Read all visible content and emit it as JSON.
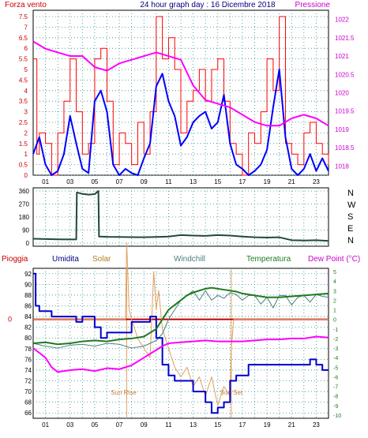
{
  "chart_data": [
    {
      "type": "line",
      "title": "24 hour graph day : 16 Dicembre 2018",
      "left_axis_label": "Forza vento",
      "right_axis_label": "Pressione",
      "x_ticks": [
        "01",
        "03",
        "05",
        "07",
        "09",
        "11",
        "13",
        "15",
        "17",
        "19",
        "21",
        "23"
      ],
      "left_ticks": [
        "0",
        "0.5",
        "1",
        "1.5",
        "2",
        "2.5",
        "3",
        "3.5",
        "4",
        "4.5",
        "5",
        "5.5",
        "6",
        "6.5",
        "7",
        "7.5"
      ],
      "right_ticks": [
        "1018",
        "1018.5",
        "1019",
        "1019.5",
        "1020",
        "1020.5",
        "1021",
        "1021.5",
        "1022"
      ],
      "left_range": [
        0,
        7.5
      ],
      "right_range": [
        1017.75,
        1022.25
      ],
      "x_range": [
        0,
        24
      ],
      "series": [
        {
          "name": "gust",
          "color": "#ff0000",
          "x": [
            0,
            0.3,
            0.5,
            1,
            1.5,
            2,
            2.5,
            3,
            3.5,
            4,
            4.5,
            5,
            5.5,
            6,
            6.5,
            7,
            7.5,
            8,
            8.5,
            9,
            9.5,
            10,
            10.5,
            11,
            11.5,
            12,
            12.5,
            13,
            13.5,
            14,
            14.5,
            15,
            15.5,
            16,
            16.5,
            17,
            17.5,
            18,
            18.5,
            19,
            19.5,
            20,
            20.5,
            21,
            21.5,
            22,
            22.5,
            23,
            23.5,
            24
          ],
          "values": [
            5.5,
            1,
            2,
            1.5,
            0,
            2,
            3.5,
            5.5,
            3,
            1,
            1.5,
            5.5,
            6,
            3.5,
            0.5,
            2,
            1.5,
            0.5,
            2.5,
            1,
            3,
            7.5,
            5.5,
            6.5,
            5,
            2,
            3.5,
            4,
            5,
            3.5,
            5,
            5.5,
            3.5,
            1.5,
            1,
            0,
            2,
            1.5,
            3,
            5.5,
            4,
            7.5,
            1.5,
            1,
            0.5,
            2,
            2.5,
            1.5,
            1,
            0.5
          ]
        },
        {
          "name": "wind",
          "color": "#0000ff",
          "x": [
            0,
            0.5,
            1,
            1.5,
            2,
            2.5,
            3,
            3.5,
            4,
            4.5,
            5,
            5.5,
            6,
            6.5,
            7,
            7.5,
            8,
            8.5,
            9,
            9.5,
            10,
            10.5,
            11,
            11.5,
            12,
            12.5,
            13,
            13.5,
            14,
            14.5,
            15,
            15.5,
            16,
            16.5,
            17,
            17.5,
            18,
            18.5,
            19,
            19.5,
            20,
            20.5,
            21,
            21.5,
            22,
            22.5,
            23,
            23.5,
            24
          ],
          "values": [
            1,
            1.8,
            0.5,
            0,
            0.2,
            1,
            2.8,
            1.5,
            0.3,
            0.1,
            3.5,
            4,
            3,
            0.5,
            0,
            0.3,
            0.1,
            0,
            0.8,
            1.5,
            4.2,
            4.8,
            3.5,
            2.8,
            1.4,
            1.8,
            2.5,
            2.8,
            3,
            2.2,
            2.5,
            3.8,
            1.5,
            0.5,
            0.3,
            0,
            0.2,
            0.5,
            1.2,
            3.2,
            5,
            1.8,
            0.3,
            0,
            0.3,
            1,
            0.2,
            0.8,
            0.2
          ]
        },
        {
          "name": "Pressione",
          "color": "#ff00ff",
          "x": [
            0,
            1,
            2,
            3,
            4,
            5,
            6,
            7,
            8,
            9,
            10,
            11,
            12,
            13,
            14,
            15,
            16,
            17,
            18,
            19,
            20,
            21,
            22,
            23,
            24
          ],
          "values": [
            1021.4,
            1021.2,
            1021.1,
            1021,
            1021,
            1020.7,
            1020.6,
            1020.8,
            1020.9,
            1021,
            1021.1,
            1021,
            1020.9,
            1020.2,
            1019.8,
            1019.7,
            1019.6,
            1019.4,
            1019.2,
            1019.1,
            1019.1,
            1019.3,
            1019.4,
            1019.3,
            1019.1
          ]
        }
      ]
    },
    {
      "type": "line",
      "right_ticks": [
        "N",
        "W",
        "S",
        "E",
        "N"
      ],
      "left_ticks": [
        "0",
        "90",
        "180",
        "270",
        "360"
      ],
      "left_range": [
        0,
        360
      ],
      "x_range": [
        0,
        24
      ],
      "series": [
        {
          "name": "direction",
          "color": "#1f4a3a",
          "x": [
            0,
            1,
            2,
            3,
            3.5,
            3.55,
            4,
            4.5,
            5,
            5.3,
            5.35,
            6,
            7,
            8,
            9,
            10,
            11,
            12,
            13,
            14,
            15,
            16,
            17,
            18,
            19,
            20,
            21,
            22,
            23,
            24
          ],
          "values": [
            30,
            28,
            26,
            25,
            25,
            350,
            340,
            335,
            338,
            360,
            45,
            43,
            42,
            41,
            40,
            42,
            45,
            55,
            52,
            50,
            55,
            52,
            45,
            40,
            38,
            40,
            20,
            18,
            20,
            15
          ]
        }
      ]
    },
    {
      "type": "line",
      "legend": [
        "Pioggia",
        "Umidita",
        "Solar",
        "Windchill",
        "Temperatura",
        "Dew Point (°C)"
      ],
      "left_ticks": [
        "66",
        "68",
        "70",
        "72",
        "74",
        "76",
        "78",
        "80",
        "82",
        "84",
        "86",
        "88",
        "90",
        "92"
      ],
      "right_ticks": [
        "5",
        "4",
        "3",
        "2",
        "1",
        "0",
        "-1",
        "-2",
        "-3",
        "-4",
        "-5",
        "-6",
        "-7",
        "-8",
        "-9",
        "-10"
      ],
      "rain_label": "0",
      "left_range": [
        65,
        93
      ],
      "right_range": [
        -10,
        5
      ],
      "x_range": [
        0,
        24
      ],
      "annotations": [
        "Sun Rise",
        "Sun Set"
      ],
      "sunrise_hour": 7.6,
      "sunset_hour": 16.1,
      "series": [
        {
          "name": "Pioggia",
          "color": "#c00000",
          "x": [
            0,
            24
          ],
          "values": [
            0,
            0
          ]
        },
        {
          "name": "Umidita",
          "color": "#0000cc",
          "x": [
            0,
            0.2,
            0.5,
            1,
            1.5,
            2,
            2.5,
            3,
            3.5,
            4,
            4.5,
            5,
            5.5,
            6,
            6.5,
            7,
            7.5,
            8,
            8.5,
            9,
            9.5,
            10,
            10.5,
            11,
            11.5,
            12,
            12.5,
            13,
            13.5,
            14,
            14.5,
            15,
            15.5,
            16,
            16.5,
            17,
            17.5,
            18,
            18.5,
            19,
            19.5,
            20,
            20.5,
            21,
            21.5,
            22,
            22.5,
            23,
            23.5,
            24
          ],
          "values": [
            92,
            86,
            85,
            85,
            84,
            84,
            84,
            84,
            83,
            84,
            84,
            82,
            80,
            81,
            81,
            81,
            81,
            83,
            83,
            83,
            84,
            80,
            75,
            73,
            72,
            72,
            72,
            70,
            70,
            68,
            66,
            67,
            68,
            72,
            73,
            73,
            75,
            75,
            75,
            75,
            75,
            75,
            75,
            75,
            75,
            75,
            76,
            75,
            74,
            74
          ]
        },
        {
          "name": "Solar",
          "color": "#e0a060",
          "x": [
            0,
            7,
            7.5,
            7.6,
            7.8,
            8,
            8.5,
            9,
            9.5,
            9.8,
            10,
            10.2,
            10.5,
            11,
            11.5,
            12,
            12.5,
            13,
            13.5,
            14,
            14.5,
            15,
            15.5,
            16,
            16.1,
            16.3,
            24
          ],
          "values": [
            0,
            0,
            0,
            8,
            1,
            0,
            -2,
            -3,
            -4,
            5,
            1,
            3,
            -1,
            -3,
            -5,
            -6,
            -5,
            -7,
            -6,
            -8,
            -6,
            -9,
            -7,
            -8,
            -3,
            0,
            0
          ]
        },
        {
          "name": "Windchill",
          "color": "#4a7f7f",
          "x": [
            0,
            1,
            2,
            3,
            4,
            5,
            6,
            7,
            8,
            9,
            10,
            10.5,
            11,
            11.5,
            12,
            12.5,
            13,
            13.5,
            14,
            14.5,
            15,
            15.5,
            16,
            16.5,
            17,
            17.5,
            18,
            18.5,
            19,
            19.5,
            20,
            20.5,
            21,
            21.5,
            22,
            22.5,
            23,
            23.5,
            24
          ],
          "values": [
            -2.5,
            -2.8,
            -3,
            -2.7,
            -2.6,
            -2.8,
            -2.5,
            -2.6,
            -3,
            -2.8,
            -2.2,
            -1.5,
            0,
            1,
            2,
            2.5,
            3,
            2,
            3,
            2,
            2.5,
            2.2,
            2.8,
            2.6,
            2,
            2.5,
            2.5,
            1.6,
            2.3,
            1.2,
            2.5,
            2.5,
            1.5,
            2.3,
            2.5,
            1.8,
            2.6,
            2.4,
            2.3
          ]
        },
        {
          "name": "Temperatura",
          "color": "#1f7a1f",
          "x": [
            0,
            1,
            2,
            3,
            4,
            5,
            6,
            7,
            8,
            9,
            10,
            10.5,
            11,
            11.5,
            12,
            12.5,
            13,
            13.5,
            14,
            14.5,
            15,
            15.5,
            16,
            16.5,
            17,
            18,
            19,
            20,
            21,
            22,
            23,
            24
          ],
          "values": [
            -2.5,
            -2.4,
            -2.6,
            -2.5,
            -2.3,
            -2.2,
            -2.3,
            -2.1,
            -2,
            -1.8,
            -1,
            0,
            1,
            1.5,
            2,
            2.5,
            2.8,
            3,
            3.2,
            3.3,
            3.2,
            3.1,
            3,
            2.9,
            2.7,
            2.5,
            2.3,
            2.3,
            2.4,
            2.5,
            2.6,
            2.7
          ]
        },
        {
          "name": "Dew Point (°C)",
          "color": "#ff00ff",
          "x": [
            0,
            0.5,
            1,
            1.5,
            2,
            3,
            4,
            5,
            6,
            7,
            8,
            9,
            10,
            10.5,
            11,
            12,
            13,
            14,
            15,
            16,
            17,
            18,
            19,
            20,
            21,
            22,
            23,
            24
          ],
          "values": [
            -3,
            -3.5,
            -4,
            -5,
            -5.5,
            -5.3,
            -5.2,
            -5.4,
            -5.1,
            -5.2,
            -4.8,
            -4,
            -3.2,
            -2.8,
            -2.5,
            -2.4,
            -2.3,
            -2.2,
            -2.3,
            -2.3,
            -2.3,
            -2.2,
            -2.1,
            -2.1,
            -2,
            -2,
            -1.8,
            -1.9
          ]
        }
      ]
    }
  ]
}
